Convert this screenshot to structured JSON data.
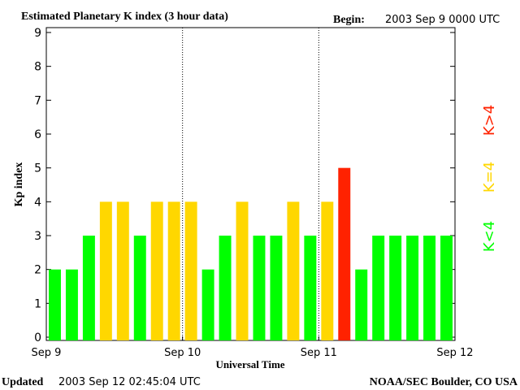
{
  "header": {
    "title": "Estimated Planetary K index (3 hour data)",
    "begin_label": "Begin:",
    "begin_value": "2003 Sep 9 0000 UTC"
  },
  "footer": {
    "updated_label": "Updated",
    "updated_value": "2003 Sep 12 02:45:04 UTC",
    "credit": "NOAA/SEC Boulder, CO USA"
  },
  "legend": {
    "high": "K>4",
    "equal": "K=4",
    "low": "K<4"
  },
  "colors": {
    "low": "#00ff00",
    "equal": "#ffd700",
    "high": "#ff2200"
  },
  "chart_data": {
    "type": "bar",
    "title": "Estimated Planetary K index (3 hour data)",
    "xlabel": "Universal Time",
    "ylabel": "Kp index",
    "ylim": [
      0,
      9
    ],
    "yticks": [
      0,
      1,
      2,
      3,
      4,
      5,
      6,
      7,
      8,
      9
    ],
    "xticks": [
      "Sep 9",
      "Sep 10",
      "Sep 11",
      "Sep 12"
    ],
    "day_separators": [
      "Sep 10",
      "Sep 11"
    ],
    "categories": [
      "Sep 9 00",
      "Sep 9 03",
      "Sep 9 06",
      "Sep 9 09",
      "Sep 9 12",
      "Sep 9 15",
      "Sep 9 18",
      "Sep 9 21",
      "Sep 10 00",
      "Sep 10 03",
      "Sep 10 06",
      "Sep 10 09",
      "Sep 10 12",
      "Sep 10 15",
      "Sep 10 18",
      "Sep 10 21",
      "Sep 11 00",
      "Sep 11 03",
      "Sep 11 06",
      "Sep 11 09",
      "Sep 11 12",
      "Sep 11 15",
      "Sep 11 18",
      "Sep 11 21"
    ],
    "values": [
      2,
      2,
      3,
      4,
      4,
      3,
      4,
      4,
      4,
      2,
      3,
      4,
      3,
      3,
      4,
      3,
      4,
      5,
      2,
      3,
      3,
      3,
      3,
      3
    ]
  }
}
